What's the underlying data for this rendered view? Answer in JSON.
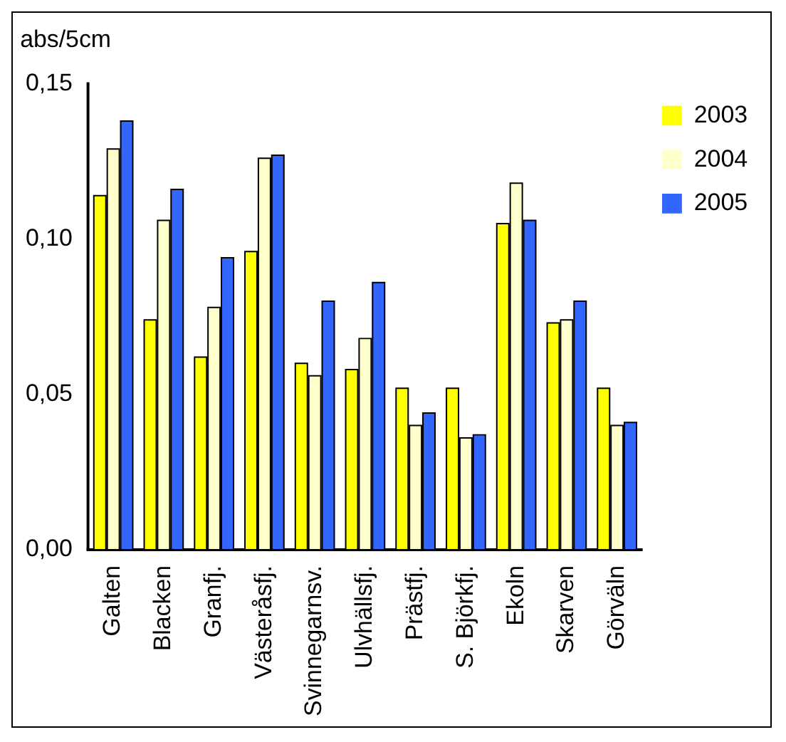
{
  "chart_data": {
    "type": "bar",
    "ylabel": "abs/5cm",
    "categories": [
      "Galten",
      "Blacken",
      "Granfj.",
      "Västeråsfj.",
      "Svinnegarnsv.",
      "Ulvhällsfj.",
      "Prästfj.",
      "S. Björkfj.",
      "Ekoln",
      "Skarven",
      "Görväln"
    ],
    "series": [
      {
        "name": "2003",
        "color": "#ffff00",
        "values": [
          0.114,
          0.074,
          0.062,
          0.096,
          0.06,
          0.058,
          0.052,
          0.052,
          0.105,
          0.073,
          0.052
        ]
      },
      {
        "name": "2004",
        "color": "#ffffcc",
        "values": [
          0.129,
          0.106,
          0.078,
          0.126,
          0.056,
          0.068,
          0.04,
          0.036,
          0.118,
          0.074,
          0.04
        ]
      },
      {
        "name": "2005",
        "color": "#3366ff",
        "values": [
          0.138,
          0.116,
          0.094,
          0.127,
          0.08,
          0.086,
          0.044,
          0.037,
          0.106,
          0.08,
          0.041
        ]
      }
    ],
    "ylim": [
      0,
      0.15
    ],
    "yticks": [
      {
        "value": 0,
        "label": "0,00"
      },
      {
        "value": 0.05,
        "label": "0,05"
      },
      {
        "value": 0.1,
        "label": "0,10"
      },
      {
        "value": 0.15,
        "label": "0,15"
      }
    ],
    "grid": false,
    "legend": "top right"
  }
}
